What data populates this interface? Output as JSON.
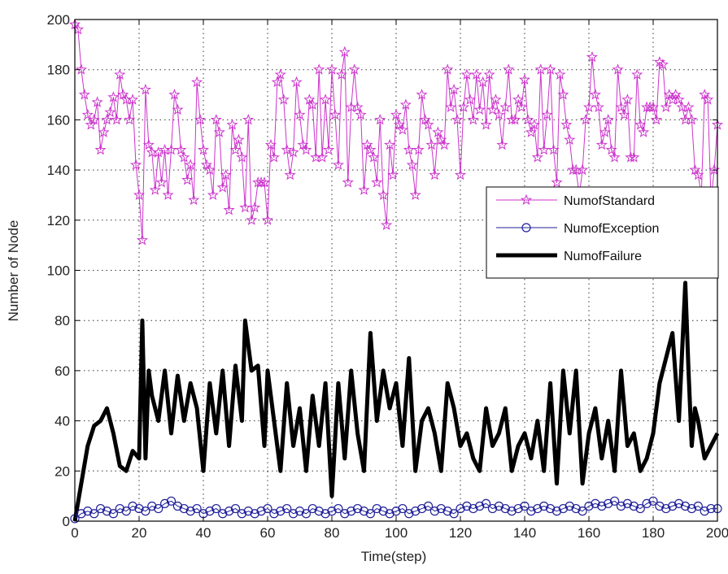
{
  "chart_data": {
    "type": "line",
    "title": "",
    "xlabel": "Time(step)",
    "ylabel": "Number of Node",
    "xlim": [
      0,
      200
    ],
    "ylim": [
      0,
      200
    ],
    "xticks": [
      0,
      20,
      40,
      60,
      80,
      100,
      120,
      140,
      160,
      180,
      200
    ],
    "yticks": [
      0,
      20,
      40,
      60,
      80,
      100,
      120,
      140,
      160,
      180,
      200
    ],
    "grid": true,
    "legend_position": "right-middle",
    "series": [
      {
        "name": "NumofStandard",
        "color": "#cc33cc",
        "marker": "star",
        "line_width": 1,
        "x": [
          0,
          1,
          2,
          3,
          4,
          5,
          6,
          7,
          8,
          9,
          10,
          11,
          12,
          13,
          14,
          15,
          16,
          17,
          18,
          19,
          20,
          21,
          22,
          23,
          24,
          25,
          26,
          27,
          28,
          29,
          30,
          31,
          32,
          33,
          34,
          35,
          36,
          37,
          38,
          39,
          40,
          41,
          42,
          43,
          44,
          45,
          46,
          47,
          48,
          49,
          50,
          51,
          52,
          53,
          54,
          55,
          56,
          57,
          58,
          59,
          60,
          61,
          62,
          63,
          64,
          65,
          66,
          67,
          68,
          69,
          70,
          71,
          72,
          73,
          74,
          75,
          76,
          77,
          78,
          79,
          80,
          81,
          82,
          83,
          84,
          85,
          86,
          87,
          88,
          89,
          90,
          91,
          92,
          93,
          94,
          95,
          96,
          97,
          98,
          99,
          100,
          101,
          102,
          103,
          104,
          105,
          106,
          107,
          108,
          109,
          110,
          111,
          112,
          113,
          114,
          115,
          116,
          117,
          118,
          119,
          120,
          121,
          122,
          123,
          124,
          125,
          126,
          127,
          128,
          129,
          130,
          131,
          132,
          133,
          134,
          135,
          136,
          137,
          138,
          139,
          140,
          141,
          142,
          143,
          144,
          145,
          146,
          147,
          148,
          149,
          150,
          151,
          152,
          153,
          154,
          155,
          156,
          157,
          158,
          159,
          160,
          161,
          162,
          163,
          164,
          165,
          166,
          167,
          168,
          169,
          170,
          171,
          172,
          173,
          174,
          175,
          176,
          177,
          178,
          179,
          180,
          181,
          182,
          183,
          184,
          185,
          186,
          187,
          188,
          189,
          190,
          191,
          192,
          193,
          194,
          195,
          196,
          197,
          198,
          199,
          200
        ],
        "y": [
          198,
          196,
          180,
          170,
          162,
          158,
          160,
          167,
          148,
          155,
          160,
          163,
          169,
          160,
          178,
          170,
          168,
          160,
          168,
          142,
          130,
          112,
          172,
          150,
          147,
          132,
          147,
          135,
          148,
          130,
          148,
          170,
          164,
          148,
          145,
          136,
          142,
          128,
          175,
          160,
          148,
          142,
          140,
          130,
          160,
          155,
          133,
          138,
          124,
          158,
          148,
          152,
          145,
          125,
          160,
          120,
          125,
          135,
          135,
          135,
          120,
          150,
          145,
          175,
          178,
          168,
          148,
          138,
          147,
          175,
          162,
          150,
          148,
          168,
          166,
          145,
          180,
          145,
          168,
          148,
          180,
          162,
          142,
          178,
          187,
          135,
          165,
          180,
          165,
          162,
          132,
          150,
          148,
          145,
          135,
          160,
          130,
          118,
          150,
          138,
          162,
          158,
          156,
          166,
          148,
          142,
          130,
          148,
          170,
          160,
          158,
          150,
          138,
          155,
          152,
          150,
          180,
          165,
          172,
          160,
          138,
          165,
          178,
          168,
          160,
          178,
          164,
          175,
          158,
          178,
          164,
          168,
          162,
          150,
          165,
          180,
          160,
          160,
          168,
          165,
          176,
          160,
          155,
          158,
          145,
          180,
          148,
          162,
          180,
          148,
          135,
          178,
          170,
          158,
          152,
          140,
          140,
          130,
          140,
          160,
          165,
          185,
          170,
          165,
          150,
          155,
          160,
          148,
          145,
          180,
          165,
          162,
          168,
          145,
          145,
          178,
          158,
          155,
          165,
          165,
          165,
          160,
          183,
          182,
          165,
          170,
          168,
          170,
          168,
          165,
          160,
          165,
          160,
          140,
          138,
          130,
          170,
          168,
          128,
          140,
          158
        ],
        "line_width_note": ""
      },
      {
        "name": "NumofException",
        "color": "#1f1f99",
        "marker": "circle",
        "line_width": 1,
        "x": [
          0,
          2,
          4,
          6,
          8,
          10,
          12,
          14,
          16,
          18,
          20,
          22,
          24,
          26,
          28,
          30,
          32,
          34,
          36,
          38,
          40,
          42,
          44,
          46,
          48,
          50,
          52,
          54,
          56,
          58,
          60,
          62,
          64,
          66,
          68,
          70,
          72,
          74,
          76,
          78,
          80,
          82,
          84,
          86,
          88,
          90,
          92,
          94,
          96,
          98,
          100,
          102,
          104,
          106,
          108,
          110,
          112,
          114,
          116,
          118,
          120,
          122,
          124,
          126,
          128,
          130,
          132,
          134,
          136,
          138,
          140,
          142,
          144,
          146,
          148,
          150,
          152,
          154,
          156,
          158,
          160,
          162,
          164,
          166,
          168,
          170,
          172,
          174,
          176,
          178,
          180,
          182,
          184,
          186,
          188,
          190,
          192,
          194,
          196,
          198,
          200
        ],
        "y": [
          1,
          3,
          4,
          3,
          5,
          4,
          3,
          5,
          4,
          6,
          5,
          4,
          6,
          5,
          7,
          8,
          6,
          5,
          4,
          5,
          3,
          4,
          5,
          3,
          4,
          5,
          3,
          4,
          3,
          4,
          5,
          3,
          4,
          5,
          3,
          4,
          3,
          5,
          4,
          3,
          4,
          5,
          3,
          4,
          5,
          4,
          3,
          5,
          4,
          3,
          4,
          5,
          3,
          4,
          5,
          6,
          4,
          5,
          4,
          3,
          5,
          6,
          5,
          6,
          7,
          5,
          6,
          5,
          4,
          5,
          6,
          4,
          5,
          6,
          5,
          4,
          5,
          6,
          5,
          4,
          6,
          7,
          6,
          7,
          8,
          6,
          7,
          6,
          5,
          7,
          8,
          6,
          5,
          6,
          7,
          6,
          5,
          6,
          4,
          5,
          5
        ]
      },
      {
        "name": "NumofFailure",
        "color": "#000000",
        "marker": "none",
        "line_width": 5,
        "x": [
          0,
          2,
          4,
          6,
          8,
          10,
          12,
          14,
          16,
          18,
          20,
          21,
          22,
          23,
          24,
          26,
          28,
          30,
          32,
          34,
          36,
          38,
          40,
          42,
          44,
          46,
          48,
          50,
          52,
          53,
          55,
          57,
          59,
          60,
          62,
          64,
          66,
          68,
          70,
          72,
          74,
          76,
          78,
          80,
          82,
          84,
          86,
          88,
          90,
          92,
          94,
          96,
          98,
          100,
          102,
          104,
          106,
          108,
          110,
          112,
          114,
          116,
          118,
          120,
          122,
          124,
          126,
          128,
          130,
          132,
          134,
          136,
          138,
          140,
          142,
          144,
          146,
          148,
          150,
          152,
          154,
          156,
          158,
          160,
          162,
          164,
          166,
          168,
          170,
          172,
          174,
          176,
          178,
          180,
          182,
          184,
          186,
          188,
          190,
          191,
          192,
          193,
          194,
          196,
          198,
          200
        ],
        "y": [
          0,
          15,
          30,
          38,
          40,
          45,
          35,
          22,
          20,
          28,
          25,
          80,
          25,
          60,
          50,
          40,
          60,
          35,
          58,
          40,
          55,
          45,
          20,
          55,
          35,
          60,
          30,
          62,
          40,
          80,
          60,
          62,
          30,
          60,
          40,
          20,
          55,
          30,
          45,
          20,
          50,
          30,
          55,
          10,
          55,
          25,
          60,
          35,
          20,
          75,
          40,
          60,
          45,
          55,
          30,
          65,
          20,
          40,
          45,
          35,
          20,
          55,
          45,
          30,
          35,
          25,
          20,
          45,
          30,
          35,
          45,
          20,
          30,
          35,
          25,
          40,
          20,
          55,
          15,
          60,
          35,
          60,
          15,
          35,
          45,
          25,
          40,
          20,
          60,
          30,
          35,
          20,
          25,
          35,
          55,
          65,
          75,
          40,
          95,
          60,
          30,
          45,
          40,
          25,
          30,
          35
        ]
      }
    ]
  }
}
